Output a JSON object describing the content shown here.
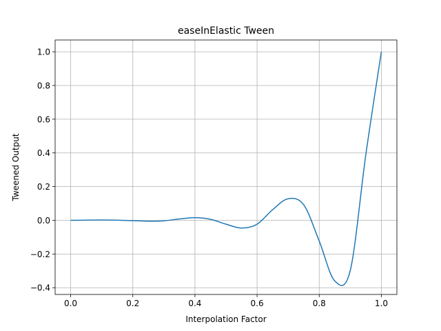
{
  "chart_data": {
    "type": "line",
    "title": "easeInElastic Tween",
    "xlabel": "Interpolation Factor",
    "ylabel": "Tweened Output",
    "xlim": [
      -0.05,
      1.05
    ],
    "ylim": [
      -0.44,
      1.07
    ],
    "grid": true,
    "legend": "none",
    "x_ticks": [
      0.0,
      0.2,
      0.4,
      0.6,
      0.8,
      1.0
    ],
    "x_tick_labels": [
      "0.0",
      "0.2",
      "0.4",
      "0.6",
      "0.8",
      "1.0"
    ],
    "y_ticks": [
      -0.4,
      -0.2,
      0.0,
      0.2,
      0.4,
      0.6,
      0.8,
      1.0
    ],
    "y_tick_labels": [
      "−0.4",
      "−0.2",
      "0.0",
      "0.2",
      "0.4",
      "0.6",
      "0.8",
      "1.0"
    ],
    "series": [
      {
        "color": "#1f77b4",
        "x": [
          0.0,
          0.05,
          0.1,
          0.15,
          0.2,
          0.25,
          0.3,
          0.35,
          0.4,
          0.45,
          0.5,
          0.55,
          0.6,
          0.65,
          0.7,
          0.75,
          0.8,
          0.85,
          0.9,
          0.95,
          1.0
        ],
        "y": [
          0.0,
          0.001,
          0.002,
          0.001,
          -0.002,
          -0.005,
          -0.003,
          0.008,
          0.016,
          0.006,
          -0.023,
          -0.046,
          -0.023,
          0.063,
          0.128,
          0.092,
          -0.123,
          -0.36,
          -0.297,
          0.39,
          1.0
        ]
      }
    ]
  }
}
